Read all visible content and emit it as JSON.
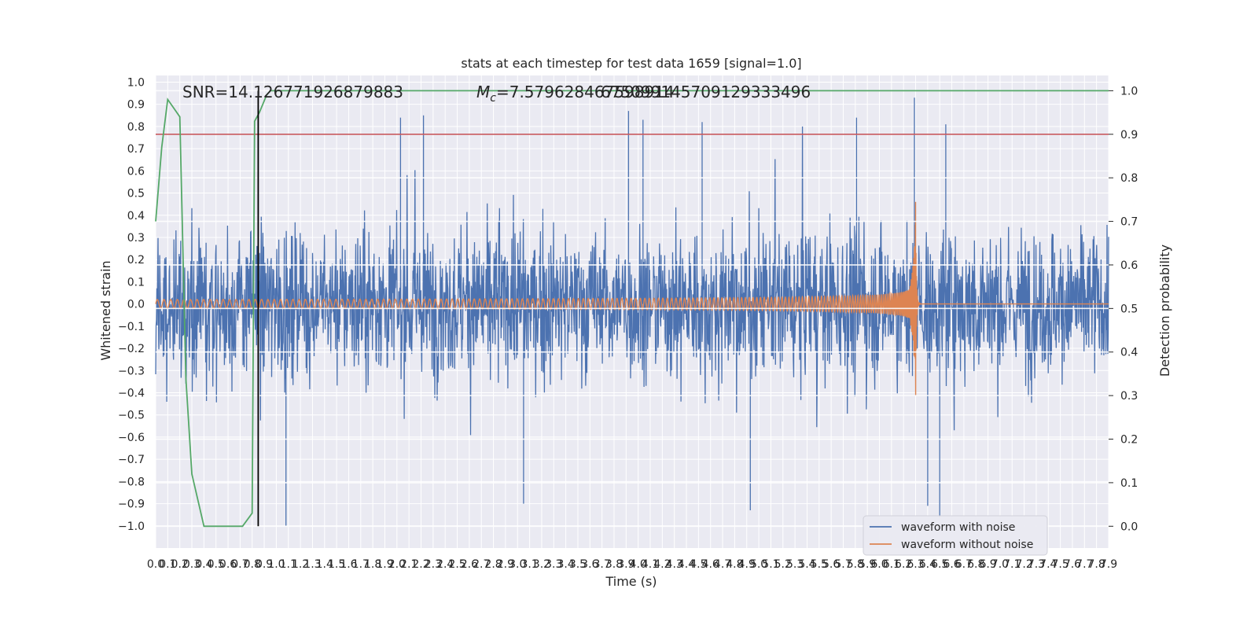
{
  "chart_data": {
    "type": "line",
    "title": "stats at each timestep for test data 1659 [signal=1.0]",
    "xlabel": "Time (s)",
    "ylabel": "Whitened strain",
    "y2label": "Detection probability",
    "xlim": [
      0.0,
      7.9
    ],
    "ylim": [
      -1.1,
      1.03
    ],
    "y2lim": [
      -0.05,
      1.035
    ],
    "x_tick_step": 0.1,
    "y_ticks": [
      -1.0,
      -0.9,
      -0.8,
      -0.7,
      -0.6,
      -0.5,
      -0.4,
      -0.3,
      -0.2,
      -0.1,
      0.0,
      0.1,
      0.2,
      0.3,
      0.4,
      0.5,
      0.6,
      0.7,
      0.8,
      0.9,
      1.0
    ],
    "y2_ticks": [
      0.0,
      0.1,
      0.2,
      0.3,
      0.4,
      0.5,
      0.6,
      0.7,
      0.8,
      0.9,
      1.0
    ],
    "annotations": {
      "snr": "SNR=14.126771926879883",
      "mc": "M_c=7.579628467598914",
      "overlap": "675099145709129333496"
    },
    "colors": {
      "noisy": "#4c72b0",
      "clean": "#dd8452",
      "prob": "#55a868",
      "threshold": "#c44e52",
      "marker": "#000000",
      "axes_bg": "#eaeaf2",
      "grid": "#ffffff"
    },
    "series": [
      {
        "name": "waveform with noise",
        "description": "whitened strain, noise band roughly -0.42..0.42 with spikes up to ±1.0",
        "envelope_abs": 0.42,
        "peak_events": [
          {
            "x": 1.08,
            "y": -1.0
          },
          {
            "x": 2.03,
            "y": 0.84
          },
          {
            "x": 2.22,
            "y": 0.85
          },
          {
            "x": 3.05,
            "y": -0.9
          },
          {
            "x": 3.92,
            "y": 0.87
          },
          {
            "x": 4.04,
            "y": 0.83
          },
          {
            "x": 4.53,
            "y": 0.82
          },
          {
            "x": 4.93,
            "y": -0.93
          },
          {
            "x": 5.81,
            "y": 0.84
          },
          {
            "x": 6.29,
            "y": 0.93
          },
          {
            "x": 6.4,
            "y": -0.91
          },
          {
            "x": 6.5,
            "y": -0.96
          },
          {
            "x": 6.55,
            "y": 0.81
          }
        ]
      },
      {
        "name": "waveform without noise",
        "description": "chirp waveform, amplitude grows to merger at ~6.3 s then ringdown to 0",
        "start_amplitude": 0.02,
        "merger_time": 6.3,
        "merger_peak": 0.46,
        "merger_trough": -0.35
      },
      {
        "name": "detection probability",
        "axis": "right",
        "x": [
          0.0,
          0.05,
          0.1,
          0.15,
          0.2,
          0.25,
          0.3,
          0.4,
          0.5,
          0.6,
          0.7,
          0.72,
          0.8,
          0.82,
          0.86,
          0.92,
          0.95,
          7.9
        ],
        "y": [
          0.7,
          0.87,
          0.98,
          0.96,
          0.94,
          0.34,
          0.12,
          0.0,
          0.0,
          0.0,
          0.0,
          0.0,
          0.03,
          0.93,
          0.95,
          0.99,
          1.0,
          1.0
        ]
      },
      {
        "name": "threshold",
        "axis": "right",
        "type": "hline",
        "y": 0.9
      },
      {
        "name": "detection time",
        "type": "vline",
        "x": 0.85
      }
    ],
    "legend": [
      "waveform with noise",
      "waveform without noise"
    ],
    "legend_position": "lower right"
  }
}
